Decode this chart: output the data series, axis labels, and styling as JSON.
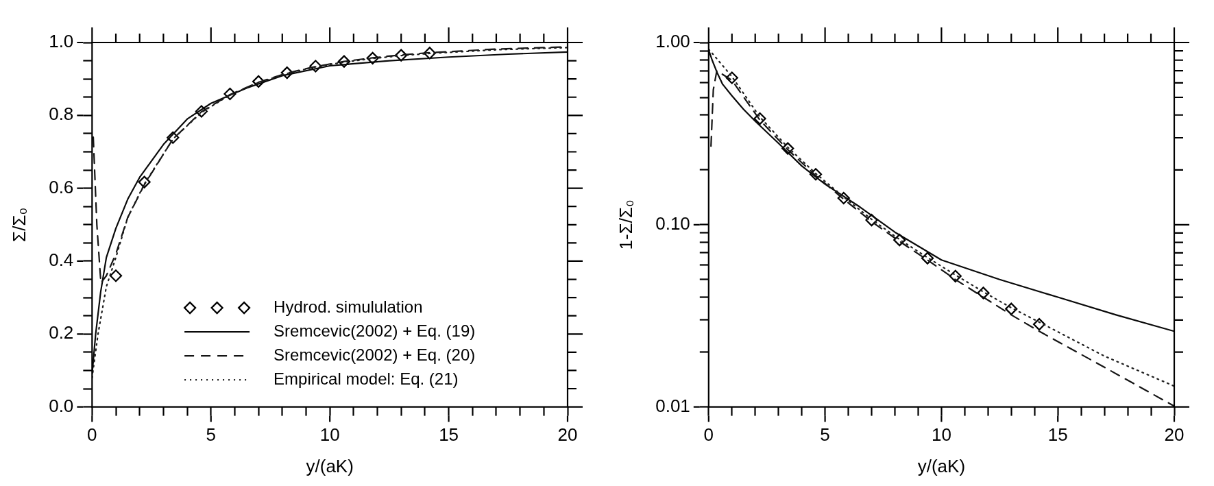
{
  "chart_data": [
    {
      "type": "line",
      "xlabel": "y/(aK)",
      "ylabel": "Σ/Σ₀",
      "xlim": [
        0,
        20
      ],
      "ylim": [
        0,
        1
      ],
      "xticks": [
        0,
        {
          "value": 1,
          "label": null
        },
        {
          "value": 2,
          "label": null
        },
        {
          "value": 3,
          "label": null
        },
        {
          "value": 4,
          "label": null
        },
        5,
        {
          "value": 6,
          "label": null
        },
        {
          "value": 7,
          "label": null
        },
        {
          "value": 8,
          "label": null
        },
        {
          "value": 9,
          "label": null
        },
        10,
        {
          "value": 11,
          "label": null
        },
        {
          "value": 12,
          "label": null
        },
        {
          "value": 13,
          "label": null
        },
        {
          "value": 14,
          "label": null
        },
        15,
        {
          "value": 16,
          "label": null
        },
        {
          "value": 17,
          "label": null
        },
        {
          "value": 18,
          "label": null
        },
        {
          "value": 19,
          "label": null
        },
        20
      ],
      "yticks": [
        {
          "value": 0,
          "label": "0.0"
        },
        {
          "value": 0.05,
          "label": null
        },
        {
          "value": 0.1,
          "label": null
        },
        {
          "value": 0.15,
          "label": null
        },
        {
          "value": 0.2,
          "label": "0.2"
        },
        {
          "value": 0.25,
          "label": null
        },
        {
          "value": 0.3,
          "label": null
        },
        {
          "value": 0.35,
          "label": null
        },
        {
          "value": 0.4,
          "label": "0.4"
        },
        {
          "value": 0.45,
          "label": null
        },
        {
          "value": 0.5,
          "label": null
        },
        {
          "value": 0.55,
          "label": null
        },
        {
          "value": 0.6,
          "label": "0.6"
        },
        {
          "value": 0.65,
          "label": null
        },
        {
          "value": 0.7,
          "label": null
        },
        {
          "value": 0.75,
          "label": null
        },
        {
          "value": 0.8,
          "label": "0.8"
        },
        {
          "value": 0.85,
          "label": null
        },
        {
          "value": 0.9,
          "label": null
        },
        {
          "value": 0.95,
          "label": null
        },
        {
          "value": 1,
          "label": "1.0"
        }
      ],
      "grid": false,
      "legend": "bottom",
      "series": [
        {
          "name": "Hydrod. simululation",
          "type": "scatter",
          "marker": "diamond",
          "color": "#000000",
          "x": [
            1.0,
            2.2,
            3.4,
            4.6,
            5.8,
            7.0,
            8.2,
            9.4,
            10.6,
            11.8,
            13.0,
            14.2
          ],
          "values": [
            0.36,
            0.617,
            0.739,
            0.811,
            0.859,
            0.893,
            0.917,
            0.935,
            0.948,
            0.957,
            0.965,
            0.971
          ]
        },
        {
          "name": "Sremcevic(2002) + Eq. (19)",
          "type": "line",
          "line_style": "solid",
          "color": "#0a0a0a",
          "x": [
            0,
            0.15,
            0.36,
            0.6,
            1,
            1.5,
            2,
            3,
            4,
            5,
            6.5,
            8,
            10,
            12.5,
            15,
            17.5,
            20
          ],
          "values": [
            0.09,
            0.2,
            0.315,
            0.41,
            0.49,
            0.57,
            0.63,
            0.72,
            0.79,
            0.833,
            0.875,
            0.909,
            0.936,
            0.95,
            0.96,
            0.968,
            0.974
          ]
        },
        {
          "name": "Sremcevic(2002) + Eq. (20)",
          "type": "line",
          "line_style": "dashed",
          "color": "#141414",
          "x": [
            0.05,
            0.2,
            0.37,
            0.6,
            1,
            1.5,
            2.2,
            3.4,
            4.6,
            5.8,
            7,
            8.2,
            9.4,
            10.6,
            11.8,
            13,
            14.2,
            17,
            20
          ],
          "values": [
            0.74,
            0.5,
            0.34,
            0.36,
            0.42,
            0.52,
            0.61,
            0.735,
            0.81,
            0.857,
            0.891,
            0.916,
            0.934,
            0.948,
            0.958,
            0.966,
            0.972,
            0.982,
            0.988
          ]
        },
        {
          "name": "Empirical model: Eq. (21)",
          "type": "line",
          "line_style": "dotted",
          "color": "#1e1e1e",
          "x": [
            0,
            0.25,
            0.6,
            1,
            1.5,
            2.2,
            3.4,
            4.6,
            5.8,
            7,
            8.2,
            9.4,
            10.6,
            11.8,
            13,
            14.2,
            17,
            20
          ],
          "values": [
            0.08,
            0.2,
            0.33,
            0.41,
            0.52,
            0.612,
            0.735,
            0.808,
            0.856,
            0.89,
            0.915,
            0.933,
            0.946,
            0.956,
            0.964,
            0.97,
            0.98,
            0.986
          ]
        }
      ]
    },
    {
      "type": "line",
      "xlabel": "y/(aK)",
      "ylabel": "1-Σ/Σ₀",
      "log": "y",
      "xlim": [
        0,
        20
      ],
      "ylim": [
        0.01,
        1
      ],
      "xticks": [
        0,
        {
          "value": 1,
          "label": null
        },
        {
          "value": 2,
          "label": null
        },
        {
          "value": 3,
          "label": null
        },
        {
          "value": 4,
          "label": null
        },
        5,
        {
          "value": 6,
          "label": null
        },
        {
          "value": 7,
          "label": null
        },
        {
          "value": 8,
          "label": null
        },
        {
          "value": 9,
          "label": null
        },
        10,
        {
          "value": 11,
          "label": null
        },
        {
          "value": 12,
          "label": null
        },
        {
          "value": 13,
          "label": null
        },
        {
          "value": 14,
          "label": null
        },
        15,
        {
          "value": 16,
          "label": null
        },
        {
          "value": 17,
          "label": null
        },
        {
          "value": 18,
          "label": null
        },
        {
          "value": 19,
          "label": null
        },
        20
      ],
      "yticks": [
        {
          "value": 0.01,
          "label": "0.01"
        },
        {
          "value": 0.02,
          "label": null
        },
        {
          "value": 0.03,
          "label": null
        },
        {
          "value": 0.04,
          "label": null
        },
        {
          "value": 0.05,
          "label": null
        },
        {
          "value": 0.06,
          "label": null
        },
        {
          "value": 0.07,
          "label": null
        },
        {
          "value": 0.08,
          "label": null
        },
        {
          "value": 0.09,
          "label": null
        },
        {
          "value": 0.1,
          "label": "0.10"
        },
        {
          "value": 0.2,
          "label": null
        },
        {
          "value": 0.3,
          "label": null
        },
        {
          "value": 0.4,
          "label": null
        },
        {
          "value": 0.5,
          "label": null
        },
        {
          "value": 0.6,
          "label": null
        },
        {
          "value": 0.7,
          "label": null
        },
        {
          "value": 0.8,
          "label": null
        },
        {
          "value": 0.9,
          "label": null
        },
        {
          "value": 1,
          "label": "1.00"
        }
      ],
      "grid": false,
      "series": [
        {
          "type": "scatter",
          "marker": "diamond",
          "color": "#000000",
          "x": [
            1.0,
            2.2,
            3.4,
            4.6,
            5.8,
            7.0,
            8.2,
            9.4,
            10.6,
            11.8,
            13.0,
            14.2
          ],
          "values": [
            0.64,
            0.382,
            0.262,
            0.189,
            0.14,
            0.106,
            0.0824,
            0.0655,
            0.0522,
            0.0422,
            0.0345,
            0.0284
          ]
        },
        {
          "type": "line",
          "line_style": "solid",
          "color": "#0a0a0a",
          "x": [
            0,
            0.15,
            0.36,
            0.6,
            1,
            1.5,
            2,
            3,
            4,
            5,
            6.5,
            8,
            10,
            12.5,
            15,
            17.5,
            20
          ],
          "values": [
            0.91,
            0.8,
            0.685,
            0.59,
            0.51,
            0.43,
            0.37,
            0.28,
            0.21,
            0.167,
            0.125,
            0.091,
            0.064,
            0.05,
            0.04,
            0.032,
            0.026
          ]
        },
        {
          "type": "line",
          "line_style": "dashed",
          "color": "#141414",
          "x": [
            0.1,
            0.2,
            0.35,
            1,
            2.2,
            3.4,
            4.6,
            5.8,
            7,
            8.2,
            9.4,
            10.6,
            11.8,
            13,
            14.2,
            17,
            20
          ],
          "values": [
            0.27,
            0.55,
            0.7,
            0.62,
            0.375,
            0.258,
            0.186,
            0.138,
            0.104,
            0.081,
            0.064,
            0.05,
            0.04,
            0.032,
            0.026,
            0.0165,
            0.0101
          ]
        },
        {
          "type": "line",
          "line_style": "dotted",
          "color": "#1e1e1e",
          "x": [
            0,
            1,
            2.2,
            3.4,
            4.6,
            5.8,
            7,
            8.2,
            9.4,
            10.6,
            11.8,
            13,
            14.2,
            17,
            20
          ],
          "values": [
            0.92,
            0.65,
            0.39,
            0.266,
            0.191,
            0.142,
            0.107,
            0.083,
            0.066,
            0.053,
            0.0428,
            0.035,
            0.0292,
            0.019,
            0.013
          ]
        }
      ]
    }
  ]
}
